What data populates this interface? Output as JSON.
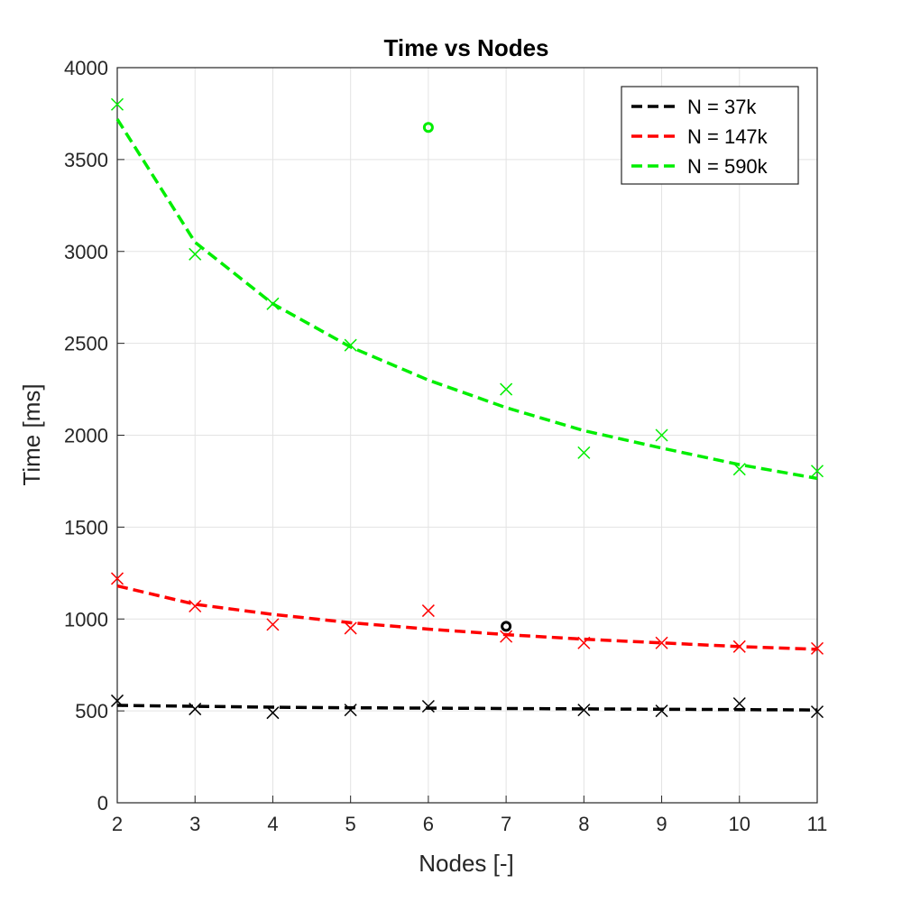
{
  "chart_data": {
    "type": "scatter",
    "title": "Time vs Nodes",
    "xlabel": "Nodes [-]",
    "ylabel": "Time [ms]",
    "xlim": [
      2,
      11
    ],
    "ylim": [
      0,
      4000
    ],
    "xticks": [
      2,
      3,
      4,
      5,
      6,
      7,
      8,
      9,
      10,
      11
    ],
    "yticks": [
      0,
      500,
      1000,
      1500,
      2000,
      2500,
      3000,
      3500,
      4000
    ],
    "grid": true,
    "legend_position": "top-right",
    "series": [
      {
        "name": "N = 37k",
        "color": "#000000",
        "x": [
          2,
          3,
          4,
          5,
          6,
          8,
          9,
          10,
          11
        ],
        "y": [
          555,
          510,
          490,
          505,
          525,
          505,
          500,
          540,
          495
        ],
        "fit": [
          530,
          525,
          520,
          517,
          515,
          513,
          511,
          509,
          507,
          505
        ],
        "outlier": {
          "x": 7,
          "y": 960
        }
      },
      {
        "name": "N = 147k",
        "color": "#ff0000",
        "x": [
          2,
          3,
          4,
          5,
          6,
          7,
          8,
          9,
          10,
          11
        ],
        "y": [
          1220,
          1070,
          970,
          950,
          1045,
          905,
          870,
          870,
          850,
          840
        ],
        "fit": [
          1180,
          1080,
          1025,
          980,
          945,
          915,
          890,
          870,
          850,
          835
        ]
      },
      {
        "name": "N = 590k",
        "color": "#00ee00",
        "x": [
          2,
          3,
          4,
          5,
          7,
          8,
          9,
          10,
          11
        ],
        "y": [
          3800,
          2985,
          2715,
          2490,
          2250,
          1905,
          2000,
          1815,
          1805
        ],
        "fit": [
          3720,
          3050,
          2715,
          2480,
          2300,
          2150,
          2025,
          1930,
          1840,
          1765
        ],
        "outlier": {
          "x": 6,
          "y": 3675
        }
      }
    ]
  }
}
